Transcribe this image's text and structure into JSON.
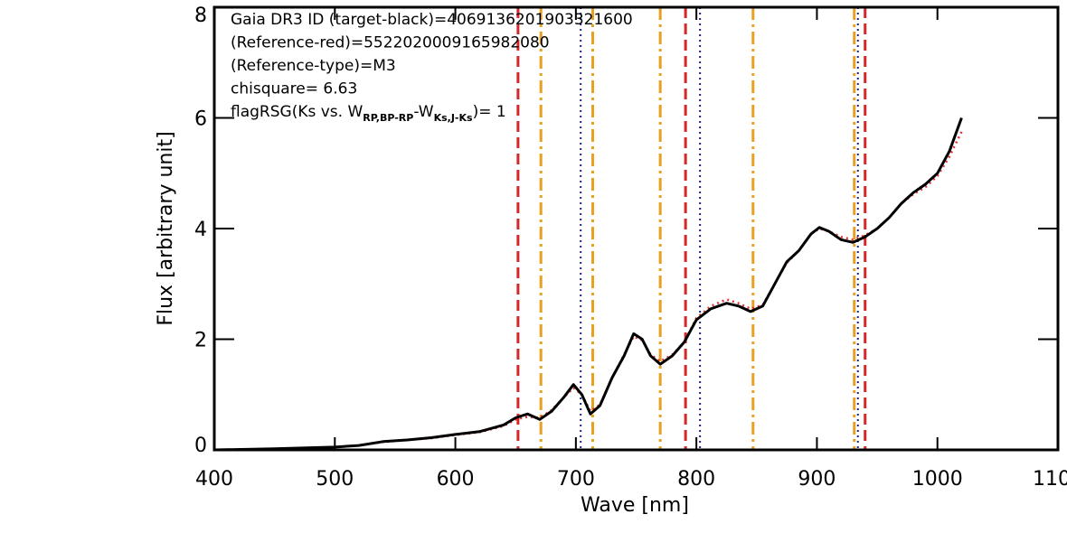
{
  "chart_data": {
    "type": "line",
    "xlabel": "Wave [nm]",
    "ylabel": "Flux [arbitrary unit]",
    "annotations": [
      "Gaia DR3 ID (target-black)=4069136201903321600",
      "(Reference-red)=5522020009165982080",
      "(Reference-type)=M3",
      "chisquare= 6.63"
    ],
    "flag_annotation": [
      "flagRSG(Ks vs. W",
      "RP,BP-RP",
      "-W",
      "Ks,J-Ks",
      ")= 1"
    ],
    "xlim": [
      400,
      1100
    ],
    "ylim": [
      0,
      8
    ],
    "xticks": [
      400,
      500,
      600,
      700,
      800,
      900,
      1000,
      1100
    ],
    "yticks": [
      0,
      2,
      4,
      6,
      8
    ],
    "x": [
      400,
      450,
      500,
      520,
      540,
      560,
      580,
      600,
      620,
      640,
      650,
      660,
      670,
      680,
      690,
      698,
      705,
      712,
      720,
      730,
      740,
      748,
      755,
      762,
      770,
      780,
      790,
      800,
      812,
      825,
      835,
      845,
      855,
      865,
      875,
      885,
      895,
      902,
      910,
      920,
      930,
      940,
      950,
      960,
      970,
      980,
      990,
      1000,
      1010,
      1020
    ],
    "series": [
      {
        "color": "#000000",
        "style": "solid",
        "values": [
          0.0,
          0.02,
          0.05,
          0.08,
          0.15,
          0.18,
          0.22,
          0.28,
          0.33,
          0.45,
          0.58,
          0.65,
          0.55,
          0.7,
          0.95,
          1.18,
          1.0,
          0.65,
          0.8,
          1.3,
          1.7,
          2.1,
          2.0,
          1.7,
          1.55,
          1.7,
          1.95,
          2.35,
          2.55,
          2.65,
          2.6,
          2.5,
          2.6,
          3.0,
          3.4,
          3.6,
          3.9,
          4.02,
          3.95,
          3.8,
          3.75,
          3.85,
          4.0,
          4.2,
          4.45,
          4.65,
          4.8,
          5.0,
          5.4,
          6.0
        ]
      },
      {
        "color": "#e03030",
        "style": "dotted",
        "values": [
          0.0,
          0.02,
          0.05,
          0.08,
          0.14,
          0.18,
          0.21,
          0.27,
          0.32,
          0.43,
          0.55,
          0.6,
          0.58,
          0.72,
          0.95,
          1.12,
          1.0,
          0.7,
          0.82,
          1.3,
          1.72,
          2.05,
          1.98,
          1.72,
          1.6,
          1.72,
          1.95,
          2.38,
          2.6,
          2.72,
          2.65,
          2.55,
          2.62,
          3.0,
          3.38,
          3.6,
          3.9,
          4.0,
          3.95,
          3.85,
          3.8,
          3.88,
          4.0,
          4.2,
          4.45,
          4.62,
          4.75,
          4.95,
          5.3,
          5.75
        ]
      }
    ],
    "reference_lines": [
      {
        "color": "#d62728",
        "style": "dashed",
        "x": [
          652,
          791,
          940
        ]
      },
      {
        "color": "#e8a020",
        "style": "dashdot",
        "x": [
          671,
          714,
          770,
          847,
          931
        ]
      },
      {
        "color": "#202080",
        "style": "dotted",
        "x": [
          704,
          803,
          934
        ]
      }
    ]
  }
}
